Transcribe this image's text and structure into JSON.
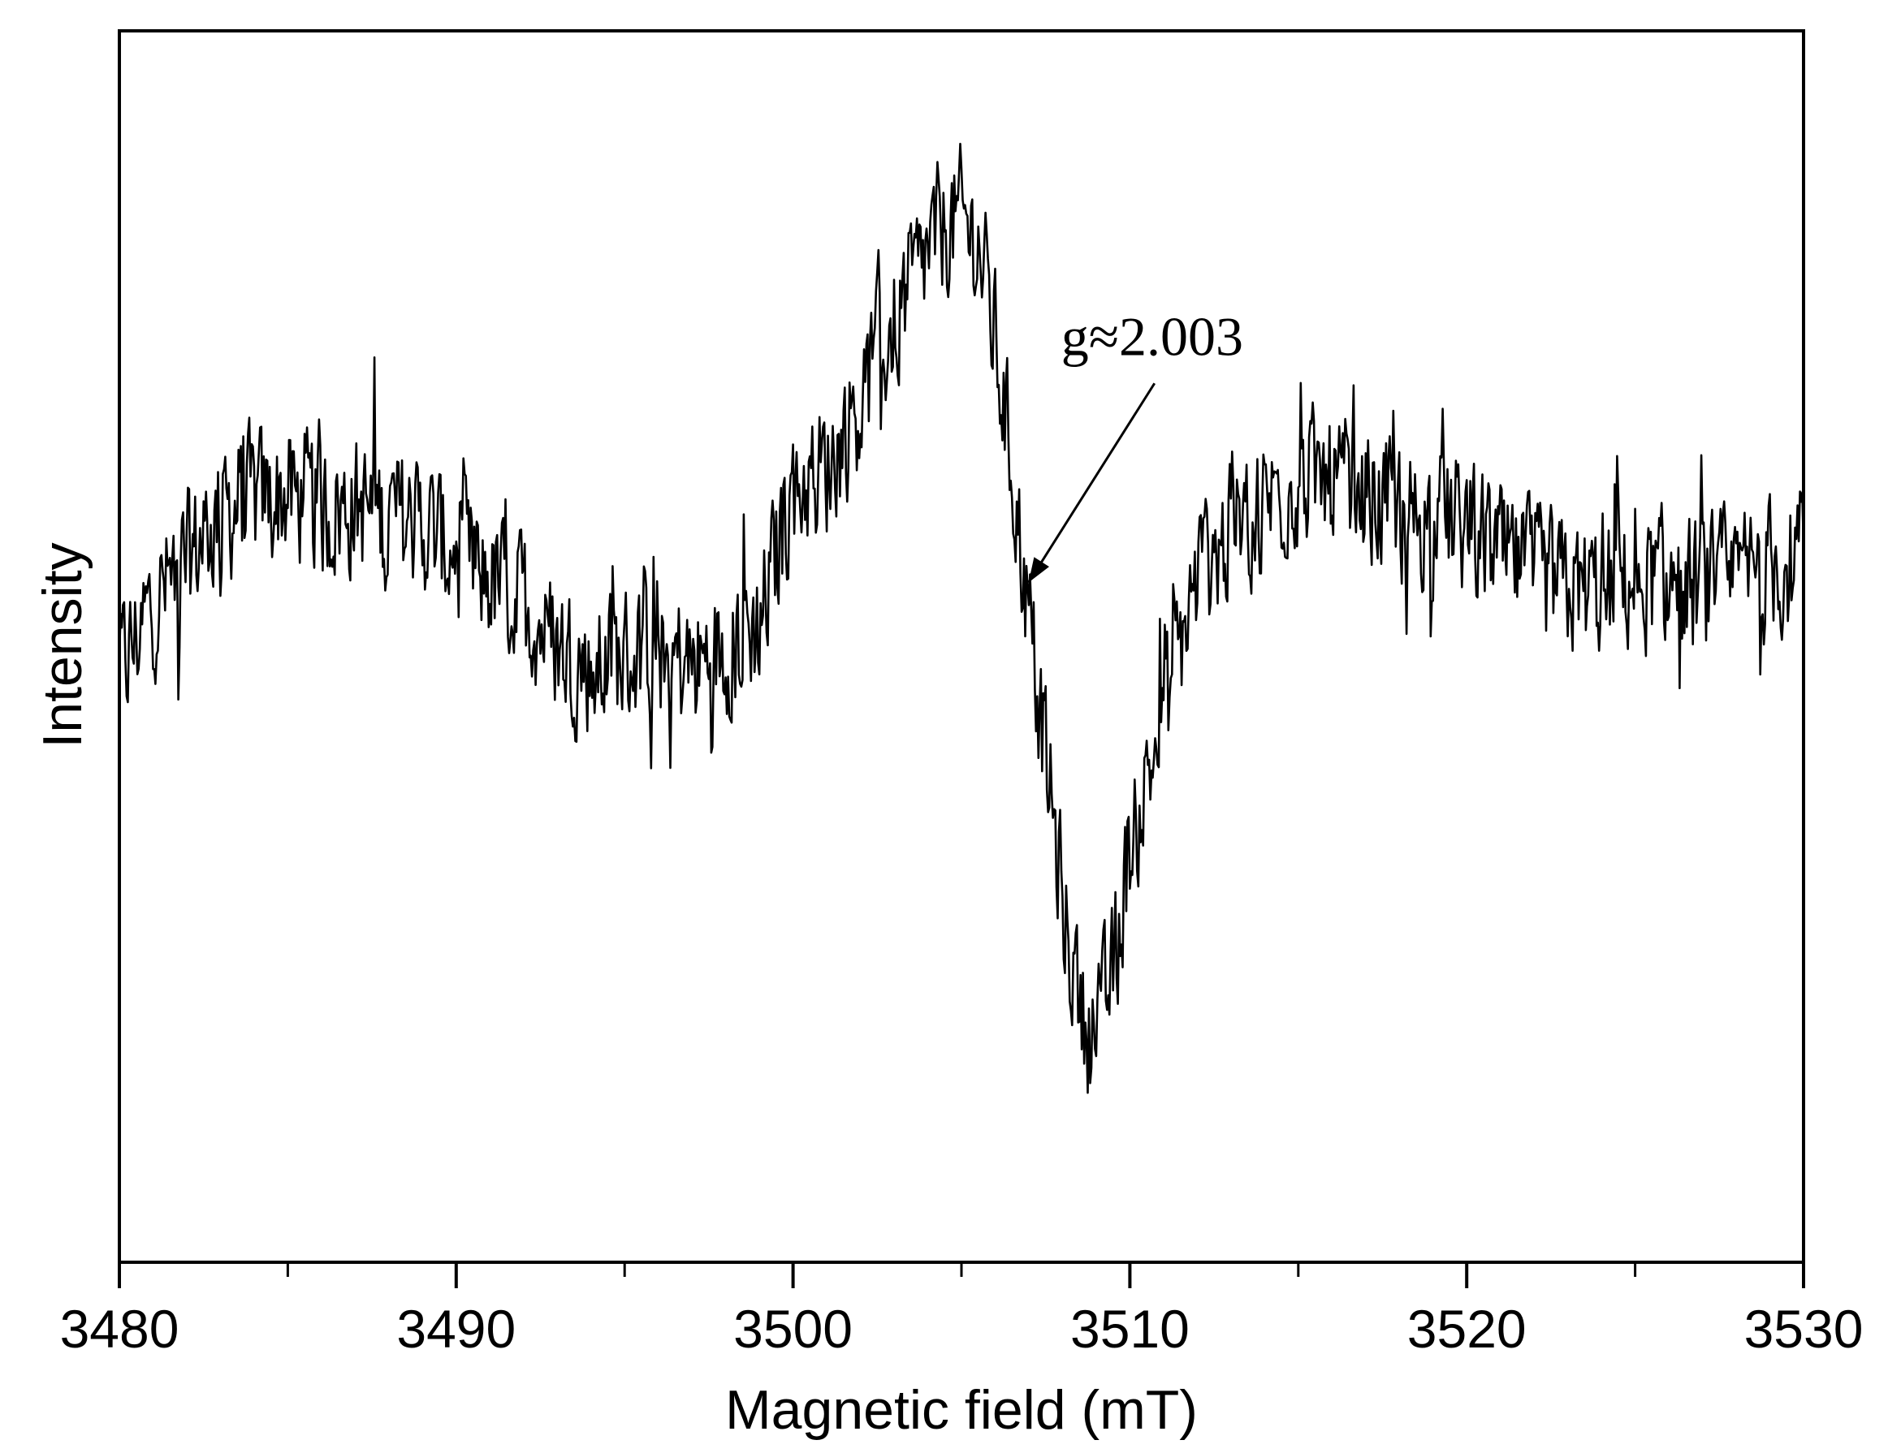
{
  "chart_data": {
    "type": "line",
    "title": "",
    "xlabel": "Magnetic field (mT)",
    "ylabel": "Intensity",
    "xlim": [
      3480,
      3530
    ],
    "ylim": [
      -1.2,
      1.0
    ],
    "x_ticks": [
      3480,
      3490,
      3500,
      3510,
      3520,
      3530
    ],
    "x_minor_ticks": [
      3485,
      3495,
      3505,
      3515,
      3525
    ],
    "y_ticks_shown": false,
    "grid": false,
    "legend": "none",
    "line_color": "#000000",
    "annotation": {
      "text": "g≈2.003",
      "target": {
        "x": 3506.8,
        "y": 0.0
      },
      "text_at": {
        "x": 3508.2,
        "y": 0.45
      }
    },
    "series": [
      {
        "name": "",
        "x": [
          3480,
          3481,
          3482,
          3483,
          3484,
          3485,
          3486,
          3487,
          3488,
          3489,
          3490,
          3491,
          3492,
          3493,
          3494,
          3495,
          3496,
          3497,
          3498,
          3499,
          3500,
          3501,
          3502,
          3503,
          3504,
          3504.5,
          3505,
          3505.5,
          3506,
          3506.5,
          3507,
          3507.5,
          3508,
          3508.5,
          3509,
          3509.5,
          3510,
          3511,
          3512,
          3513,
          3514,
          3515,
          3516,
          3517,
          3518,
          3519,
          3520,
          3521,
          3522,
          3523,
          3524,
          3525,
          3526,
          3527,
          3528,
          3529,
          3530
        ],
        "y": [
          -0.15,
          -0.02,
          0.05,
          0.14,
          0.16,
          0.17,
          0.14,
          0.15,
          0.13,
          0.12,
          0.06,
          0.02,
          -0.02,
          -0.1,
          -0.14,
          -0.12,
          -0.1,
          -0.14,
          -0.1,
          -0.06,
          0.18,
          0.22,
          0.34,
          0.48,
          0.6,
          0.65,
          0.66,
          0.62,
          0.45,
          0.22,
          -0.05,
          -0.3,
          -0.55,
          -0.75,
          -0.8,
          -0.68,
          -0.45,
          -0.22,
          0.02,
          0.1,
          0.16,
          0.2,
          0.19,
          0.17,
          0.14,
          0.13,
          0.11,
          0.06,
          0.02,
          0.0,
          0.0,
          0.02,
          0.01,
          0.0,
          0.02,
          0.04,
          0.06
        ]
      }
    ]
  }
}
